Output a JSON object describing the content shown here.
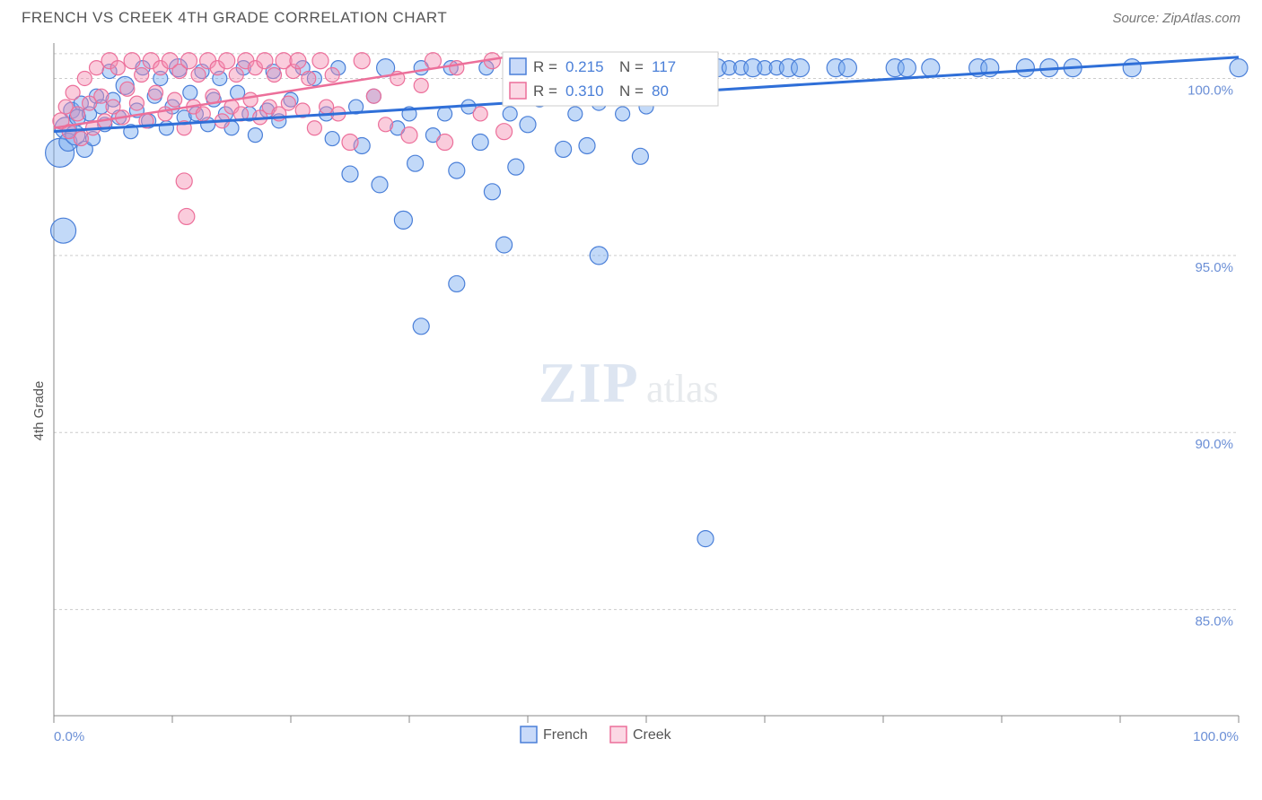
{
  "header": {
    "title": "FRENCH VS CREEK 4TH GRADE CORRELATION CHART",
    "source": "Source: ZipAtlas.com"
  },
  "ylabel": "4th Grade",
  "watermark": {
    "big": "ZIP",
    "small": "atlas"
  },
  "chart": {
    "type": "scatter",
    "background_color": "#ffffff",
    "grid_color": "#cccccc",
    "axis_color": "#888888",
    "xlim": [
      0,
      100
    ],
    "ylim": [
      82,
      101
    ],
    "x_ticks": [
      0,
      10,
      20,
      30,
      40,
      50,
      60,
      70,
      80,
      90,
      100
    ],
    "x_tick_labels": {
      "0": "0.0%",
      "100": "100.0%"
    },
    "y_ticks": [
      85,
      90,
      95,
      100
    ],
    "y_tick_labels": {
      "85": "85.0%",
      "90": "90.0%",
      "95": "95.0%",
      "100": "100.0%"
    },
    "series": [
      {
        "name": "French",
        "color_fill": "rgba(120,170,240,0.45)",
        "color_stroke": "#4a7fd8",
        "r_value": "0.215",
        "n_value": "117",
        "trend": {
          "x1": 0,
          "y1": 98.5,
          "x2": 100,
          "y2": 100.6,
          "color": "#2f6fd8",
          "width": 3
        },
        "points": [
          {
            "x": 0.5,
            "y": 97.9,
            "r": 16
          },
          {
            "x": 0.8,
            "y": 95.7,
            "r": 14
          },
          {
            "x": 1.0,
            "y": 98.6,
            "r": 12
          },
          {
            "x": 1.2,
            "y": 98.2,
            "r": 10
          },
          {
            "x": 1.5,
            "y": 99.1,
            "r": 9
          },
          {
            "x": 1.8,
            "y": 98.4,
            "r": 11
          },
          {
            "x": 2.0,
            "y": 98.9,
            "r": 9
          },
          {
            "x": 2.3,
            "y": 99.3,
            "r": 8
          },
          {
            "x": 2.6,
            "y": 98.0,
            "r": 9
          },
          {
            "x": 3.0,
            "y": 99.0,
            "r": 8
          },
          {
            "x": 3.3,
            "y": 98.3,
            "r": 8
          },
          {
            "x": 3.6,
            "y": 99.5,
            "r": 8
          },
          {
            "x": 4.0,
            "y": 99.2,
            "r": 8
          },
          {
            "x": 4.3,
            "y": 98.7,
            "r": 8
          },
          {
            "x": 4.7,
            "y": 100.2,
            "r": 8
          },
          {
            "x": 5.0,
            "y": 99.4,
            "r": 8
          },
          {
            "x": 5.5,
            "y": 98.9,
            "r": 8
          },
          {
            "x": 6.0,
            "y": 99.8,
            "r": 10
          },
          {
            "x": 6.5,
            "y": 98.5,
            "r": 8
          },
          {
            "x": 7.0,
            "y": 99.1,
            "r": 8
          },
          {
            "x": 7.5,
            "y": 100.3,
            "r": 8
          },
          {
            "x": 8.0,
            "y": 98.8,
            "r": 8
          },
          {
            "x": 8.5,
            "y": 99.5,
            "r": 8
          },
          {
            "x": 9.0,
            "y": 100.0,
            "r": 8
          },
          {
            "x": 9.5,
            "y": 98.6,
            "r": 8
          },
          {
            "x": 10.0,
            "y": 99.2,
            "r": 8
          },
          {
            "x": 10.5,
            "y": 100.3,
            "r": 10
          },
          {
            "x": 11.0,
            "y": 98.9,
            "r": 8
          },
          {
            "x": 11.5,
            "y": 99.6,
            "r": 8
          },
          {
            "x": 12.0,
            "y": 99.0,
            "r": 8
          },
          {
            "x": 12.5,
            "y": 100.2,
            "r": 8
          },
          {
            "x": 13.0,
            "y": 98.7,
            "r": 8
          },
          {
            "x": 13.5,
            "y": 99.4,
            "r": 8
          },
          {
            "x": 14.0,
            "y": 100.0,
            "r": 8
          },
          {
            "x": 14.5,
            "y": 99.0,
            "r": 8
          },
          {
            "x": 15.0,
            "y": 98.6,
            "r": 8
          },
          {
            "x": 15.5,
            "y": 99.6,
            "r": 8
          },
          {
            "x": 16.0,
            "y": 100.3,
            "r": 8
          },
          {
            "x": 16.5,
            "y": 99.0,
            "r": 8
          },
          {
            "x": 17.0,
            "y": 98.4,
            "r": 8
          },
          {
            "x": 18.0,
            "y": 99.1,
            "r": 8
          },
          {
            "x": 18.5,
            "y": 100.2,
            "r": 8
          },
          {
            "x": 19.0,
            "y": 98.8,
            "r": 8
          },
          {
            "x": 20.0,
            "y": 99.4,
            "r": 8
          },
          {
            "x": 21.0,
            "y": 100.3,
            "r": 8
          },
          {
            "x": 22.0,
            "y": 100.0,
            "r": 8
          },
          {
            "x": 23.0,
            "y": 99.0,
            "r": 8
          },
          {
            "x": 23.5,
            "y": 98.3,
            "r": 8
          },
          {
            "x": 24.0,
            "y": 100.3,
            "r": 8
          },
          {
            "x": 25.0,
            "y": 97.3,
            "r": 9
          },
          {
            "x": 25.5,
            "y": 99.2,
            "r": 8
          },
          {
            "x": 26.0,
            "y": 98.1,
            "r": 9
          },
          {
            "x": 27.0,
            "y": 99.5,
            "r": 8
          },
          {
            "x": 27.5,
            "y": 97.0,
            "r": 9
          },
          {
            "x": 28.0,
            "y": 100.3,
            "r": 10
          },
          {
            "x": 29.0,
            "y": 98.6,
            "r": 8
          },
          {
            "x": 29.5,
            "y": 96.0,
            "r": 10
          },
          {
            "x": 30.0,
            "y": 99.0,
            "r": 8
          },
          {
            "x": 30.5,
            "y": 97.6,
            "r": 9
          },
          {
            "x": 31.0,
            "y": 100.3,
            "r": 8
          },
          {
            "x": 31.0,
            "y": 93.0,
            "r": 9
          },
          {
            "x": 32.0,
            "y": 98.4,
            "r": 8
          },
          {
            "x": 33.0,
            "y": 99.0,
            "r": 8
          },
          {
            "x": 33.5,
            "y": 100.3,
            "r": 8
          },
          {
            "x": 34.0,
            "y": 97.4,
            "r": 9
          },
          {
            "x": 34.0,
            "y": 94.2,
            "r": 9
          },
          {
            "x": 35.0,
            "y": 99.2,
            "r": 8
          },
          {
            "x": 36.0,
            "y": 98.2,
            "r": 9
          },
          {
            "x": 36.5,
            "y": 100.3,
            "r": 8
          },
          {
            "x": 37.0,
            "y": 96.8,
            "r": 9
          },
          {
            "x": 38.0,
            "y": 95.3,
            "r": 9
          },
          {
            "x": 38.5,
            "y": 99.0,
            "r": 8
          },
          {
            "x": 39.0,
            "y": 97.5,
            "r": 9
          },
          {
            "x": 40.0,
            "y": 98.7,
            "r": 9
          },
          {
            "x": 40.5,
            "y": 100.3,
            "r": 8
          },
          {
            "x": 41.0,
            "y": 99.4,
            "r": 8
          },
          {
            "x": 42.0,
            "y": 100.3,
            "r": 9
          },
          {
            "x": 43.0,
            "y": 98.0,
            "r": 9
          },
          {
            "x": 43.5,
            "y": 100.3,
            "r": 8
          },
          {
            "x": 44.0,
            "y": 99.0,
            "r": 8
          },
          {
            "x": 44.5,
            "y": 100.3,
            "r": 8
          },
          {
            "x": 45.0,
            "y": 98.1,
            "r": 9
          },
          {
            "x": 46.0,
            "y": 99.3,
            "r": 8
          },
          {
            "x": 46.0,
            "y": 95.0,
            "r": 10
          },
          {
            "x": 47.0,
            "y": 100.3,
            "r": 10
          },
          {
            "x": 48.0,
            "y": 99.0,
            "r": 8
          },
          {
            "x": 49.0,
            "y": 100.3,
            "r": 8
          },
          {
            "x": 49.5,
            "y": 97.8,
            "r": 9
          },
          {
            "x": 50.0,
            "y": 99.2,
            "r": 8
          },
          {
            "x": 51.0,
            "y": 100.3,
            "r": 10
          },
          {
            "x": 52.0,
            "y": 100.3,
            "r": 8
          },
          {
            "x": 55.0,
            "y": 87.0,
            "r": 9
          },
          {
            "x": 56.0,
            "y": 100.3,
            "r": 10
          },
          {
            "x": 57.0,
            "y": 100.3,
            "r": 8
          },
          {
            "x": 58.0,
            "y": 100.3,
            "r": 8
          },
          {
            "x": 59.0,
            "y": 100.3,
            "r": 10
          },
          {
            "x": 60.0,
            "y": 100.3,
            "r": 8
          },
          {
            "x": 61.0,
            "y": 100.3,
            "r": 8
          },
          {
            "x": 62.0,
            "y": 100.3,
            "r": 10
          },
          {
            "x": 63.0,
            "y": 100.3,
            "r": 10
          },
          {
            "x": 66.0,
            "y": 100.3,
            "r": 10
          },
          {
            "x": 67.0,
            "y": 100.3,
            "r": 10
          },
          {
            "x": 71.0,
            "y": 100.3,
            "r": 10
          },
          {
            "x": 72.0,
            "y": 100.3,
            "r": 10
          },
          {
            "x": 74.0,
            "y": 100.3,
            "r": 10
          },
          {
            "x": 78.0,
            "y": 100.3,
            "r": 10
          },
          {
            "x": 79.0,
            "y": 100.3,
            "r": 10
          },
          {
            "x": 82.0,
            "y": 100.3,
            "r": 10
          },
          {
            "x": 84.0,
            "y": 100.3,
            "r": 10
          },
          {
            "x": 86.0,
            "y": 100.3,
            "r": 10
          },
          {
            "x": 91.0,
            "y": 100.3,
            "r": 10
          },
          {
            "x": 100.0,
            "y": 100.3,
            "r": 10
          }
        ]
      },
      {
        "name": "Creek",
        "color_fill": "rgba(244,143,177,0.45)",
        "color_stroke": "#ec6f9a",
        "r_value": "0.310",
        "n_value": "80",
        "trend": {
          "x1": 0,
          "y1": 98.6,
          "x2": 40,
          "y2": 100.7,
          "color": "#ec6f9a",
          "width": 2.5
        },
        "points": [
          {
            "x": 0.6,
            "y": 98.8,
            "r": 9
          },
          {
            "x": 1.0,
            "y": 99.2,
            "r": 8
          },
          {
            "x": 1.3,
            "y": 98.5,
            "r": 8
          },
          {
            "x": 1.6,
            "y": 99.6,
            "r": 8
          },
          {
            "x": 2.0,
            "y": 99.0,
            "r": 8
          },
          {
            "x": 2.3,
            "y": 98.3,
            "r": 8
          },
          {
            "x": 2.6,
            "y": 100.0,
            "r": 8
          },
          {
            "x": 3.0,
            "y": 99.3,
            "r": 8
          },
          {
            "x": 3.3,
            "y": 98.6,
            "r": 8
          },
          {
            "x": 3.6,
            "y": 100.3,
            "r": 8
          },
          {
            "x": 4.0,
            "y": 99.5,
            "r": 8
          },
          {
            "x": 4.3,
            "y": 98.8,
            "r": 8
          },
          {
            "x": 4.7,
            "y": 100.5,
            "r": 9
          },
          {
            "x": 5.0,
            "y": 99.2,
            "r": 8
          },
          {
            "x": 5.4,
            "y": 100.3,
            "r": 8
          },
          {
            "x": 5.8,
            "y": 98.9,
            "r": 8
          },
          {
            "x": 6.2,
            "y": 99.7,
            "r": 8
          },
          {
            "x": 6.6,
            "y": 100.5,
            "r": 9
          },
          {
            "x": 7.0,
            "y": 99.3,
            "r": 8
          },
          {
            "x": 7.4,
            "y": 100.1,
            "r": 8
          },
          {
            "x": 7.8,
            "y": 98.8,
            "r": 8
          },
          {
            "x": 8.2,
            "y": 100.5,
            "r": 9
          },
          {
            "x": 8.6,
            "y": 99.6,
            "r": 8
          },
          {
            "x": 9.0,
            "y": 100.3,
            "r": 8
          },
          {
            "x": 9.4,
            "y": 99.0,
            "r": 8
          },
          {
            "x": 9.8,
            "y": 100.5,
            "r": 9
          },
          {
            "x": 10.2,
            "y": 99.4,
            "r": 8
          },
          {
            "x": 10.6,
            "y": 100.2,
            "r": 8
          },
          {
            "x": 11.0,
            "y": 98.6,
            "r": 8
          },
          {
            "x": 11.0,
            "y": 97.1,
            "r": 9
          },
          {
            "x": 11.4,
            "y": 100.5,
            "r": 9
          },
          {
            "x": 11.8,
            "y": 99.2,
            "r": 8
          },
          {
            "x": 11.2,
            "y": 96.1,
            "r": 9
          },
          {
            "x": 12.2,
            "y": 100.1,
            "r": 8
          },
          {
            "x": 12.6,
            "y": 99.0,
            "r": 8
          },
          {
            "x": 13.0,
            "y": 100.5,
            "r": 9
          },
          {
            "x": 13.4,
            "y": 99.5,
            "r": 8
          },
          {
            "x": 13.8,
            "y": 100.3,
            "r": 8
          },
          {
            "x": 14.2,
            "y": 98.8,
            "r": 8
          },
          {
            "x": 14.6,
            "y": 100.5,
            "r": 9
          },
          {
            "x": 15.0,
            "y": 99.2,
            "r": 8
          },
          {
            "x": 15.4,
            "y": 100.1,
            "r": 8
          },
          {
            "x": 15.8,
            "y": 99.0,
            "r": 8
          },
          {
            "x": 16.2,
            "y": 100.5,
            "r": 9
          },
          {
            "x": 16.6,
            "y": 99.4,
            "r": 8
          },
          {
            "x": 17.0,
            "y": 100.3,
            "r": 8
          },
          {
            "x": 17.4,
            "y": 98.9,
            "r": 8
          },
          {
            "x": 17.8,
            "y": 100.5,
            "r": 9
          },
          {
            "x": 18.2,
            "y": 99.2,
            "r": 8
          },
          {
            "x": 18.6,
            "y": 100.1,
            "r": 8
          },
          {
            "x": 19.0,
            "y": 99.0,
            "r": 8
          },
          {
            "x": 19.4,
            "y": 100.5,
            "r": 9
          },
          {
            "x": 19.8,
            "y": 99.3,
            "r": 8
          },
          {
            "x": 20.2,
            "y": 100.2,
            "r": 8
          },
          {
            "x": 20.6,
            "y": 100.5,
            "r": 9
          },
          {
            "x": 21.0,
            "y": 99.1,
            "r": 8
          },
          {
            "x": 21.5,
            "y": 100.0,
            "r": 8
          },
          {
            "x": 22.0,
            "y": 98.6,
            "r": 8
          },
          {
            "x": 22.5,
            "y": 100.5,
            "r": 9
          },
          {
            "x": 23.0,
            "y": 99.2,
            "r": 8
          },
          {
            "x": 23.5,
            "y": 100.1,
            "r": 8
          },
          {
            "x": 24.0,
            "y": 99.0,
            "r": 8
          },
          {
            "x": 25.0,
            "y": 98.2,
            "r": 9
          },
          {
            "x": 26.0,
            "y": 100.5,
            "r": 9
          },
          {
            "x": 27.0,
            "y": 99.5,
            "r": 8
          },
          {
            "x": 28.0,
            "y": 98.7,
            "r": 8
          },
          {
            "x": 29.0,
            "y": 100.0,
            "r": 8
          },
          {
            "x": 30.0,
            "y": 98.4,
            "r": 9
          },
          {
            "x": 31.0,
            "y": 99.8,
            "r": 8
          },
          {
            "x": 32.0,
            "y": 100.5,
            "r": 9
          },
          {
            "x": 33.0,
            "y": 98.2,
            "r": 9
          },
          {
            "x": 34.0,
            "y": 100.3,
            "r": 8
          },
          {
            "x": 36.0,
            "y": 99.0,
            "r": 8
          },
          {
            "x": 37.0,
            "y": 100.5,
            "r": 9
          },
          {
            "x": 38.0,
            "y": 98.5,
            "r": 9
          },
          {
            "x": 39.0,
            "y": 100.2,
            "r": 8
          },
          {
            "x": 40.0,
            "y": 100.5,
            "r": 9
          }
        ]
      }
    ]
  },
  "legend_stats": {
    "row1": {
      "r_label": "R =",
      "r_val": "0.215",
      "n_label": "N =",
      "n_val": "117"
    },
    "row2": {
      "r_label": "R =",
      "r_val": "0.310",
      "n_label": "N =",
      "n_val": "80"
    }
  },
  "bottom_legend": {
    "s1": "French",
    "s2": "Creek"
  }
}
